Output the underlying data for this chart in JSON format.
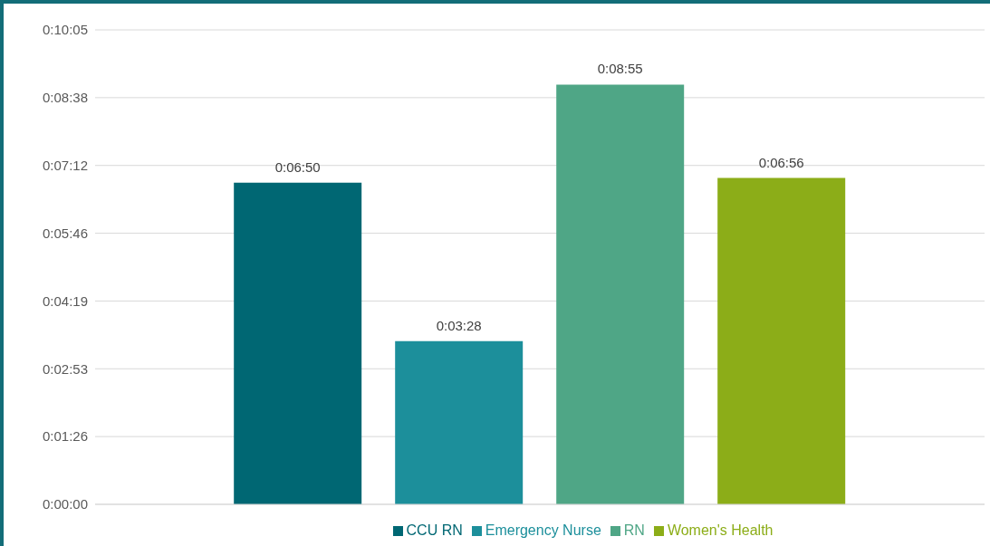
{
  "chart_data": {
    "type": "bar",
    "categories": [
      null
    ],
    "series": [
      {
        "name": "CCU RN",
        "color": "#006773",
        "values": [
          410
        ],
        "value_labels": [
          "0:06:50"
        ]
      },
      {
        "name": "Emergency Nurse",
        "color": "#1c8f9b",
        "values": [
          208
        ],
        "value_labels": [
          "0:03:28"
        ]
      },
      {
        "name": "RN",
        "color": "#4fa686",
        "values": [
          535
        ],
        "value_labels": [
          "0:08:55"
        ]
      },
      {
        "name": "Women's Health",
        "color": "#8cad18",
        "values": [
          416
        ],
        "value_labels": [
          "0:06:56"
        ]
      }
    ],
    "ylim": [
      0,
      604.8
    ],
    "yticks": [
      {
        "value": 0,
        "label": "0:00:00"
      },
      {
        "value": 86.4,
        "label": "0:01:26"
      },
      {
        "value": 172.8,
        "label": "0:02:53"
      },
      {
        "value": 259.2,
        "label": "0:04:19"
      },
      {
        "value": 345.6,
        "label": "0:05:46"
      },
      {
        "value": 432,
        "label": "0:07:12"
      },
      {
        "value": 518.4,
        "label": "0:08:38"
      },
      {
        "value": 604.8,
        "label": "0:10:05"
      }
    ],
    "grid": "y",
    "legend": "bottom"
  }
}
